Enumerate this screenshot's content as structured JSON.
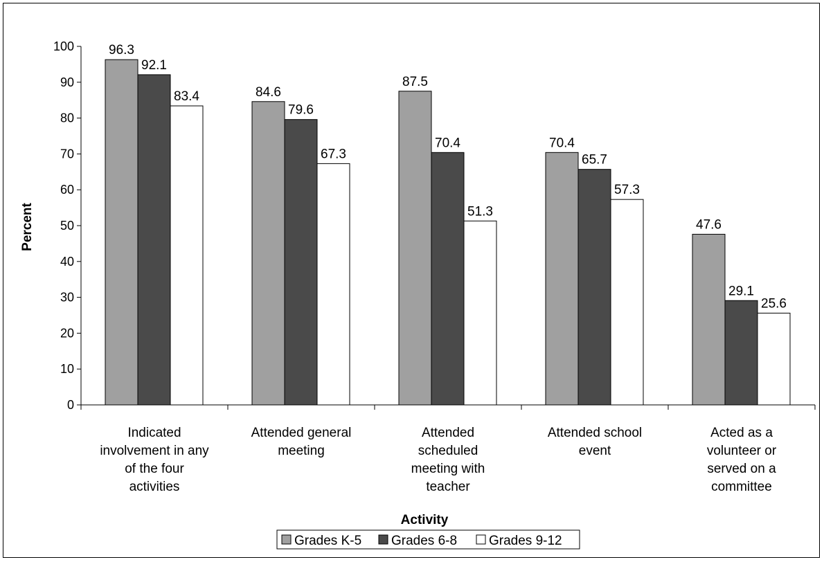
{
  "chart_data": {
    "type": "bar",
    "title": "",
    "xlabel": "Activity",
    "ylabel": "Percent",
    "ylim": [
      0,
      100
    ],
    "yticks": [
      0,
      10,
      20,
      30,
      40,
      50,
      60,
      70,
      80,
      90,
      100
    ],
    "grid": false,
    "legend_position": "bottom",
    "categories": [
      "Indicated involvement in any of the four activities",
      "Attended general meeting",
      "Attended scheduled meeting with teacher",
      "Attended school event",
      "Acted as a volunteer or served on a committee"
    ],
    "category_lines": [
      [
        "Indicated",
        "involvement in any",
        "of the four",
        "activities"
      ],
      [
        "Attended general",
        "meeting"
      ],
      [
        "Attended",
        "scheduled",
        "meeting with",
        "teacher"
      ],
      [
        "Attended school",
        "event"
      ],
      [
        "Acted as a",
        "volunteer or",
        "served on a",
        "committee"
      ]
    ],
    "series": [
      {
        "name": "Grades K-5",
        "color": "#a0a0a0",
        "values": [
          96.3,
          84.6,
          87.5,
          70.4,
          47.6
        ]
      },
      {
        "name": "Grades 6-8",
        "color": "#4a4a4a",
        "values": [
          92.1,
          79.6,
          70.4,
          65.7,
          29.1
        ]
      },
      {
        "name": "Grades 9-12",
        "color": "#ffffff",
        "values": [
          83.4,
          67.3,
          51.3,
          57.3,
          25.6
        ]
      }
    ]
  }
}
